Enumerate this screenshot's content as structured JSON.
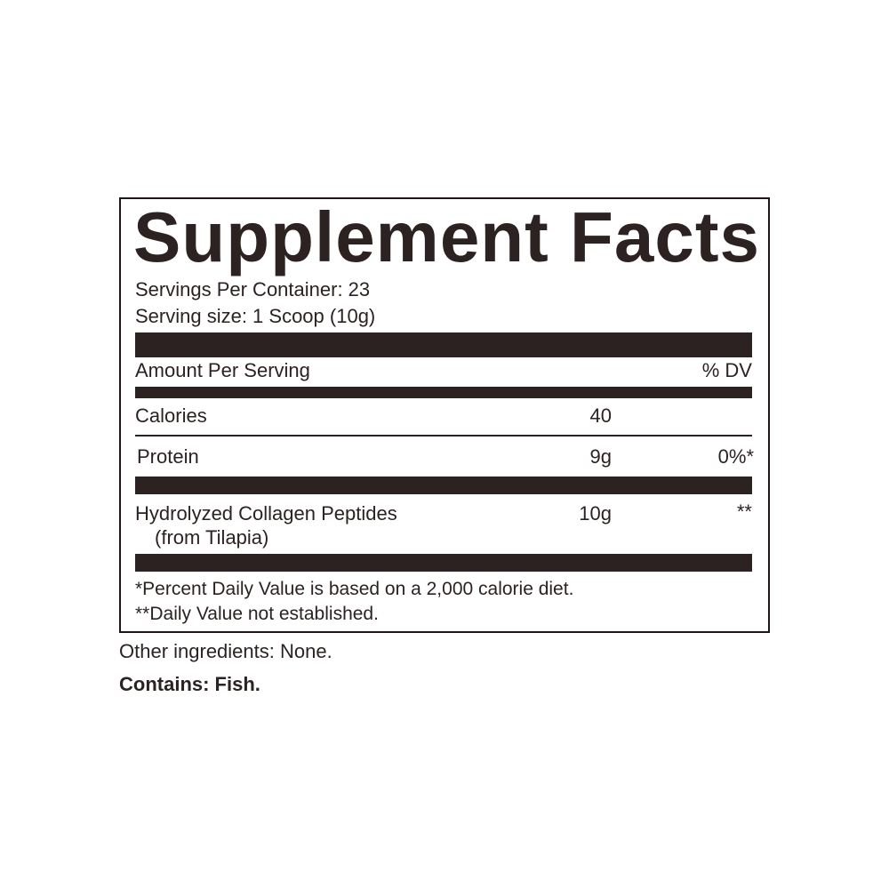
{
  "title": "Supplement Facts",
  "servings_per_container": "Servings Per Container: 23",
  "serving_size": "Serving size: 1 Scoop (10g)",
  "header": {
    "amount_label": "Amount Per Serving",
    "dv_label": "% DV"
  },
  "rows": [
    {
      "name": "Calories",
      "amount": "40",
      "dv": ""
    },
    {
      "name": "Protein",
      "amount": "9g",
      "dv": "0%*"
    },
    {
      "name": "Hydrolyzed Collagen Peptides",
      "sub": "(from Tilapia)",
      "amount": "10g",
      "dv": "**"
    }
  ],
  "footnotes": [
    "*Percent Daily Value is based on a 2,000 calorie diet.",
    "**Daily Value not established."
  ],
  "other_ingredients": "Other ingredients: None.",
  "contains": "Contains: Fish.",
  "colors": {
    "ink": "#2d2222",
    "background": "#ffffff"
  }
}
